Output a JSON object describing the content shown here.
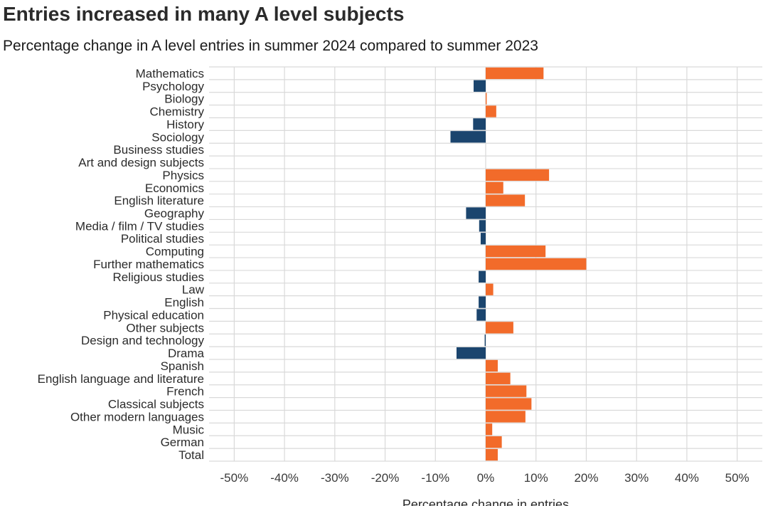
{
  "title": "Entries increased in many A level subjects",
  "subtitle": "Percentage change in A level entries in summer 2024 compared to summer 2023",
  "colors": {
    "increase": "#f26b2a",
    "decrease": "#1b456e",
    "grid": "#d9d9d9"
  },
  "chart_data": {
    "type": "bar",
    "orientation": "horizontal",
    "categories": [
      "Mathematics",
      "Psychology",
      "Biology",
      "Chemistry",
      "History",
      "Sociology",
      "Business studies",
      "Art and design subjects",
      "Physics",
      "Economics",
      "English literature",
      "Geography",
      "Media / film / TV studies",
      "Political studies",
      "Computing",
      "Further mathematics",
      "Religious studies",
      "Law",
      "English",
      "Physical education",
      "Other subjects",
      "Design and technology",
      "Drama",
      "Spanish",
      "English language and literature",
      "French",
      "Classical subjects",
      "Other modern languages",
      "Music",
      "German",
      "Total"
    ],
    "values": [
      11.5,
      -2.4,
      0.2,
      2.1,
      -2.5,
      -7.0,
      0,
      0,
      12.6,
      3.5,
      7.8,
      -3.9,
      -1.3,
      -1.0,
      11.9,
      20.0,
      -1.4,
      1.5,
      -1.4,
      -1.8,
      5.5,
      -0.2,
      -5.8,
      2.4,
      4.9,
      8.1,
      9.1,
      7.9,
      1.3,
      3.2,
      2.4
    ],
    "xlim": [
      -55,
      55
    ],
    "xticks": [
      -50,
      -40,
      -30,
      -20,
      -10,
      0,
      10,
      20,
      30,
      40,
      50
    ],
    "xtick_labels": [
      "-50%",
      "-40%",
      "-30%",
      "-20%",
      "-10%",
      "0%",
      "10%",
      "20%",
      "30%",
      "40%",
      "50%"
    ],
    "xlabel": "Percentage change in entries",
    "ylabel": "",
    "grid": true,
    "legend": "none"
  }
}
